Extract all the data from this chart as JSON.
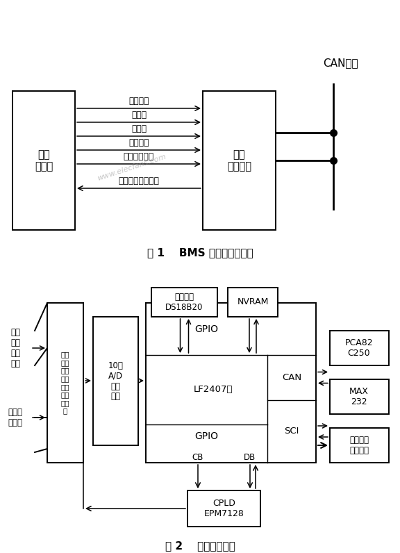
{
  "fig1": {
    "title": "图 1    BMS 基本结构示意图",
    "box1_label": "动力\n电池组",
    "box2_label": "电池\n管理系统",
    "can_label": "CAN网络",
    "arrows_right": [
      "单体电压",
      "总电压",
      "总电流",
      "电池温度",
      "风扇控制信号"
    ],
    "arrows_left": [
      "主继电器控制信号"
    ],
    "watermark": "www.elecfans.com"
  },
  "fig2": {
    "title": "图 2    系统硬件平台",
    "left_label1": "多路\n单体\n电压\n信号",
    "left_label2": "总电压\n总电流",
    "mux_label": "多路\n选择\n开关\n和线\n性隔\n离放\n大电\n路",
    "ad_label": "10位\nA/D\n转换\n模块",
    "core_label": "LF2407核",
    "gpio_top": "GPIO",
    "gpio_bot": "GPIO",
    "can_label": "CAN",
    "sci_label": "SCI",
    "temp_label": "温度采集\nDS18B20",
    "nvram_label": "NVRAM",
    "cpld_label": "CPLD\nEPM7128",
    "cb_label": "CB",
    "db_label": "DB",
    "pca_label": "PCA82\nC250",
    "max_label": "MAX\n232",
    "bat_label": "电池状态\n控制信号"
  }
}
